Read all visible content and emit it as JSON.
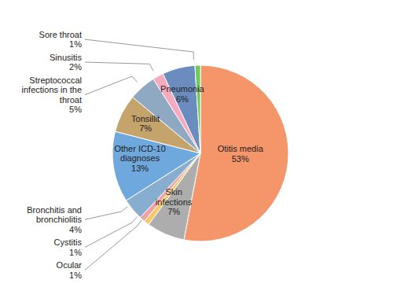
{
  "chart_data": {
    "type": "pie",
    "categories": [
      "Otitis media",
      "Skin\ninfections",
      "Ocular",
      "Cystitis",
      "Bronchitis and\nbronchiolitis",
      "Other ICD-10\ndiagnoses",
      "Tonsillit",
      "Streptococcal\ninfections in the\nthroat",
      "Sinusitis",
      "Pneumonia",
      "Sore throat"
    ],
    "values": [
      53,
      7,
      1,
      1,
      4,
      13,
      7,
      5,
      2,
      6,
      1
    ],
    "value_labels": [
      "53%",
      "7%",
      "1%",
      "1%",
      "4%",
      "13%",
      "7%",
      "5%",
      "2%",
      "6%",
      "1%"
    ],
    "colors": [
      "#F5956A",
      "#ADADAD",
      "#F5C96A",
      "#F5A0A0",
      "#87AECF",
      "#6FA8DC",
      "#C4A46B",
      "#8EA9C1",
      "#F5AABF",
      "#6B8CBE",
      "#6ECB5A"
    ],
    "data_labels": true
  }
}
